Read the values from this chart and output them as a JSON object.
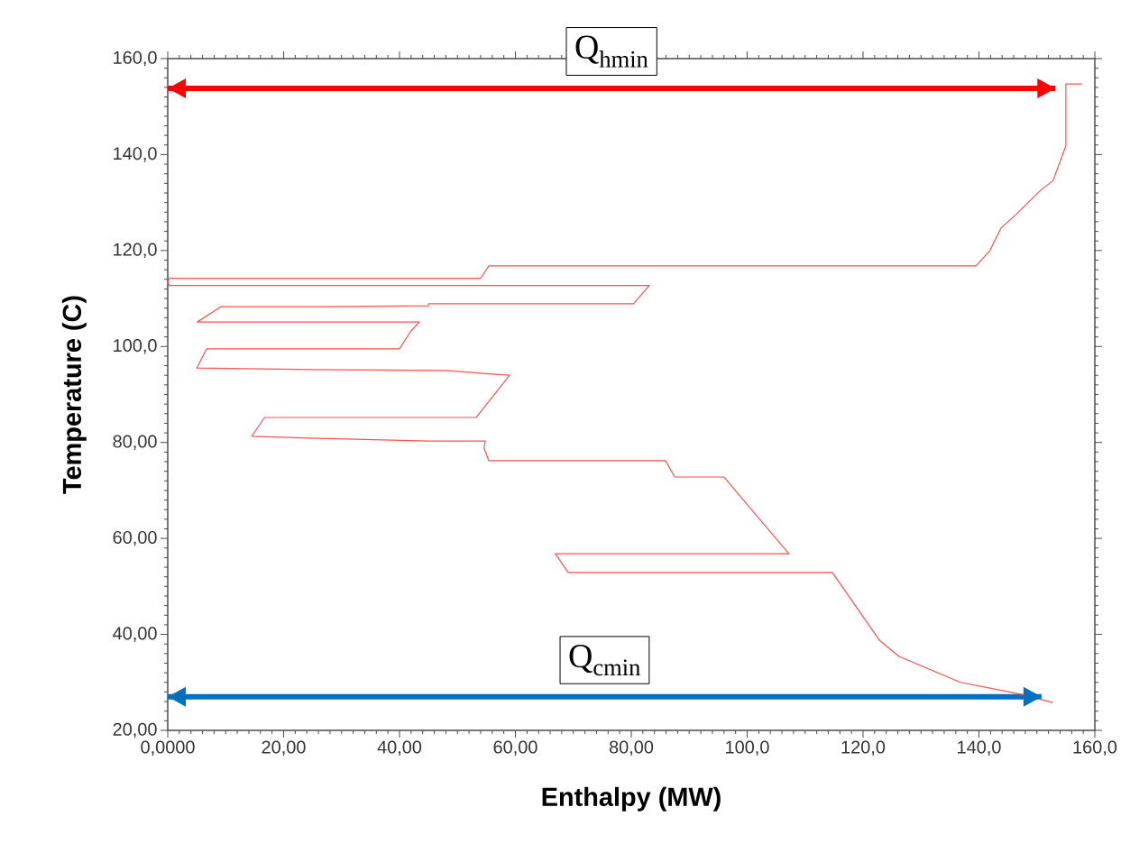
{
  "chart_data": {
    "type": "line",
    "xlabel": "Enthalpy (MW)",
    "ylabel": "Temperature  (C)",
    "xlim": [
      0,
      160
    ],
    "ylim": [
      20,
      160
    ],
    "xticks": [
      {
        "value": 0,
        "label": "0,0000"
      },
      {
        "value": 20,
        "label": "20,00"
      },
      {
        "value": 40,
        "label": "40,00"
      },
      {
        "value": 60,
        "label": "60,00"
      },
      {
        "value": 80,
        "label": "80,00"
      },
      {
        "value": 100,
        "label": "100,0"
      },
      {
        "value": 120,
        "label": "120,0"
      },
      {
        "value": 140,
        "label": "140,0"
      },
      {
        "value": 160,
        "label": "160,0"
      }
    ],
    "yticks": [
      {
        "value": 20,
        "label": "20,00"
      },
      {
        "value": 40,
        "label": "40,00"
      },
      {
        "value": 60,
        "label": "60,00"
      },
      {
        "value": 80,
        "label": "80,00"
      },
      {
        "value": 100,
        "label": "100,0"
      },
      {
        "value": 120,
        "label": "120,0"
      },
      {
        "value": 140,
        "label": "140,0"
      },
      {
        "value": 160,
        "label": "160,0"
      }
    ],
    "grid": false,
    "legend": false,
    "marker": "none",
    "line_style": "solid",
    "series": [
      {
        "color": "#ff5050",
        "x": [
          157.8,
          155.0,
          155.0,
          152.8,
          150.5,
          146.4,
          143.8,
          141.9,
          139.5,
          55.4,
          54.0,
          0.3,
          0,
          0.3,
          83.1,
          80.4,
          45.0,
          45.0,
          27.1,
          9.2,
          5.1,
          43.4,
          41.9,
          40.0,
          6.7,
          5.0,
          25.1,
          48.1,
          54.3,
          59.0,
          53.2,
          16.7,
          14.5,
          24.4,
          45.0,
          54.8,
          54.6,
          55.4,
          85.9,
          87.5,
          96.0,
          107.2,
          66.9,
          69.1,
          114.7,
          122.8,
          126.2,
          136.8,
          147.4,
          152.7
        ],
        "values": [
          154.7,
          154.7,
          141.8,
          134.6,
          132.4,
          127.5,
          124.7,
          120.0,
          116.8,
          116.8,
          114.2,
          114.2,
          113.5,
          112.7,
          112.7,
          108.9,
          108.9,
          108.5,
          108.3,
          108.3,
          105.1,
          105.1,
          103.1,
          99.5,
          99.5,
          95.5,
          95.2,
          95.0,
          94.4,
          94.0,
          85.2,
          85.2,
          81.3,
          80.9,
          80.3,
          80.3,
          78.8,
          76.2,
          76.2,
          72.8,
          72.8,
          56.8,
          56.8,
          52.9,
          52.9,
          38.8,
          35.4,
          30.0,
          27.5,
          25.8
        ]
      },
      {
        "name": "Q$_{hmin}$",
        "color": "#ff0000",
        "x": [
          0,
          153.2
        ],
        "values": [
          153.8,
          153.8
        ]
      },
      {
        "name": "Q$_{cmin}$",
        "color": "#0070c0",
        "x": [
          0,
          150.8
        ],
        "values": [
          27.0,
          27.0
        ]
      }
    ]
  }
}
